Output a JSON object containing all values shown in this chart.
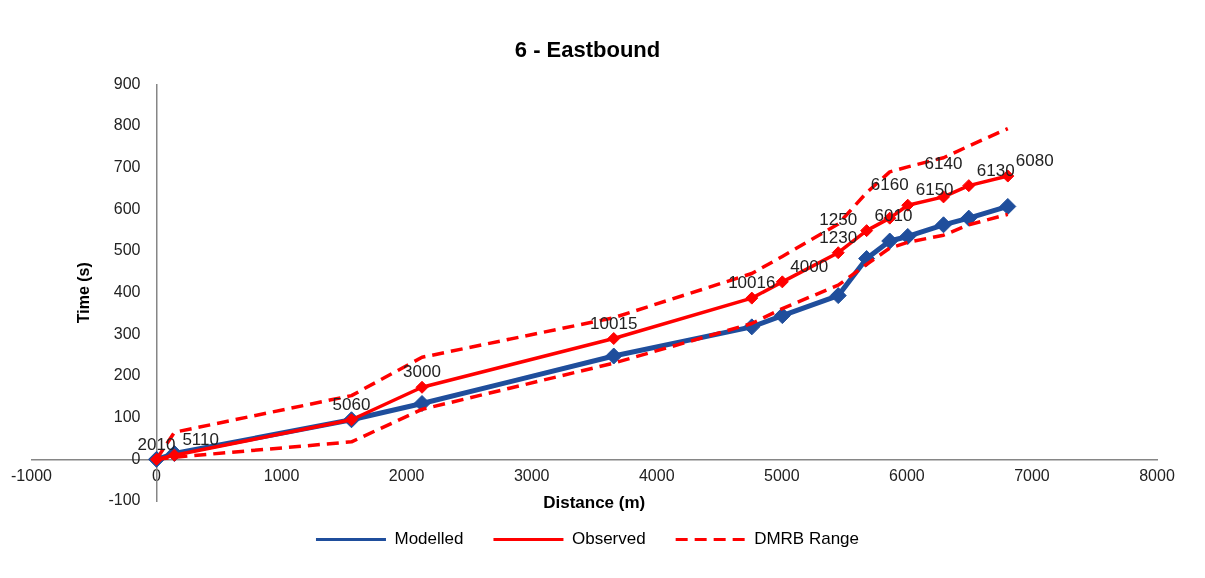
{
  "chart_data": {
    "type": "line",
    "title": "6 - Eastbound",
    "xlabel": "Distance (m)",
    "ylabel": "Time (s)",
    "xlim": [
      -1000,
      8000
    ],
    "xticks": [
      -1000,
      0,
      1000,
      2000,
      3000,
      4000,
      5000,
      6000,
      7000,
      8000
    ],
    "ylim": [
      -100,
      900
    ],
    "yticks": [
      -100,
      0,
      100,
      200,
      300,
      400,
      500,
      600,
      700,
      800,
      900
    ],
    "grid": false,
    "legend": "bottom",
    "annotations": [
      {
        "text": "2010",
        "x": 0,
        "y": 0
      },
      {
        "text": "5110",
        "x": 143,
        "y": 10
      },
      {
        "text": "5060",
        "x": 1559,
        "y": 95
      },
      {
        "text": "3000",
        "x": 2123,
        "y": 173
      },
      {
        "text": "10015",
        "x": 3656,
        "y": 290
      },
      {
        "text": "10016",
        "x": 4760,
        "y": 387
      },
      {
        "text": "4000",
        "x": 5004,
        "y": 426
      },
      {
        "text": "1230",
        "x": 5451,
        "y": 496
      },
      {
        "text": "1250",
        "x": 5451,
        "y": 496
      },
      {
        "text": "6010",
        "x": 5678,
        "y": 549
      },
      {
        "text": "6160",
        "x": 5863,
        "y": 579
      },
      {
        "text": "6150",
        "x": 6007,
        "y": 610
      },
      {
        "text": "6140",
        "x": 6293,
        "y": 630
      },
      {
        "text": "6130",
        "x": 6495,
        "y": 657
      },
      {
        "text": "6080",
        "x": 6807,
        "y": 680
      }
    ],
    "series": [
      {
        "name": "Modelled",
        "color": "#1f4e9c",
        "marker": "diamond",
        "line_style": "solid",
        "x": [
          0,
          143,
          1559,
          2123,
          3656,
          4760,
          5004,
          5451,
          5678,
          5863,
          6007,
          6293,
          6495,
          6807
        ],
        "values": [
          0,
          14,
          95,
          134,
          248,
          318,
          345,
          393,
          482,
          524,
          535,
          563,
          579,
          607
        ]
      },
      {
        "name": "Observed",
        "color": "#ff0000",
        "marker": "diamond",
        "line_style": "solid",
        "x": [
          0,
          143,
          1559,
          2123,
          3656,
          4760,
          5004,
          5451,
          5678,
          5863,
          6007,
          6293,
          6495,
          6807
        ],
        "values": [
          0,
          10,
          95,
          173,
          290,
          387,
          426,
          496,
          549,
          579,
          610,
          630,
          657,
          680
        ]
      },
      {
        "name": "DMRB Range",
        "color": "#ff0000",
        "marker": "none",
        "line_style": "dashed",
        "x": [
          0,
          143,
          1559,
          2123,
          3656,
          4760,
          5004,
          5451,
          5678,
          5863,
          6007,
          6293,
          6495,
          6807
        ],
        "values": [
          0,
          65,
          153,
          245,
          340,
          446,
          487,
          565,
          640,
          690,
          702,
          724,
          752,
          794
        ]
      },
      {
        "color": "#ff0000",
        "marker": "none",
        "line_style": "dashed",
        "x": [
          0,
          143,
          1559,
          2123,
          3656,
          4760,
          5004,
          5451,
          5678,
          5863,
          6007,
          6293,
          6495,
          6807
        ],
        "values": [
          0,
          5,
          42,
          120,
          231,
          326,
          362,
          418,
          468,
          507,
          521,
          538,
          563,
          588
        ]
      }
    ]
  }
}
